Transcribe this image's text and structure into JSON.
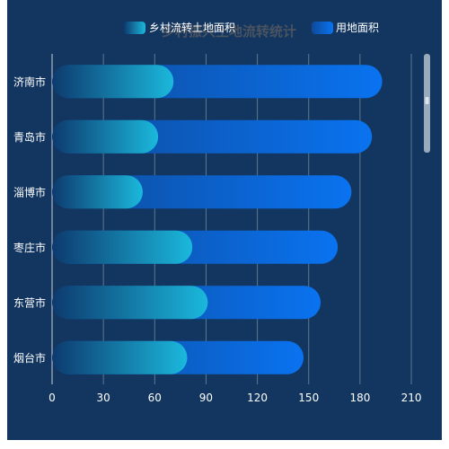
{
  "chart_data": {
    "type": "bar",
    "orientation": "horizontal",
    "title": "乡村振兴土地流转统计",
    "categories": [
      "济南市",
      "青岛市",
      "淄博市",
      "枣庄市",
      "东营市",
      "烟台市"
    ],
    "series": [
      {
        "name": "乡村流转土地面积",
        "values": [
          71,
          62,
          53,
          82,
          91,
          79
        ]
      },
      {
        "name": "用地面积",
        "values": [
          193,
          187,
          175,
          167,
          157,
          147
        ]
      }
    ],
    "xlim": [
      0,
      220
    ],
    "xticks": [
      0,
      30,
      60,
      90,
      120,
      150,
      180,
      210
    ],
    "grid": true,
    "legend": "top-right",
    "colors": {
      "background": "#12365f",
      "series1_start": "#0d3a6e",
      "series1_end": "#1bb8dc",
      "series2_start": "#0d4a9a",
      "series2_end": "#0a73f0",
      "text": "#ffffff",
      "grid": "#5e7890"
    }
  }
}
